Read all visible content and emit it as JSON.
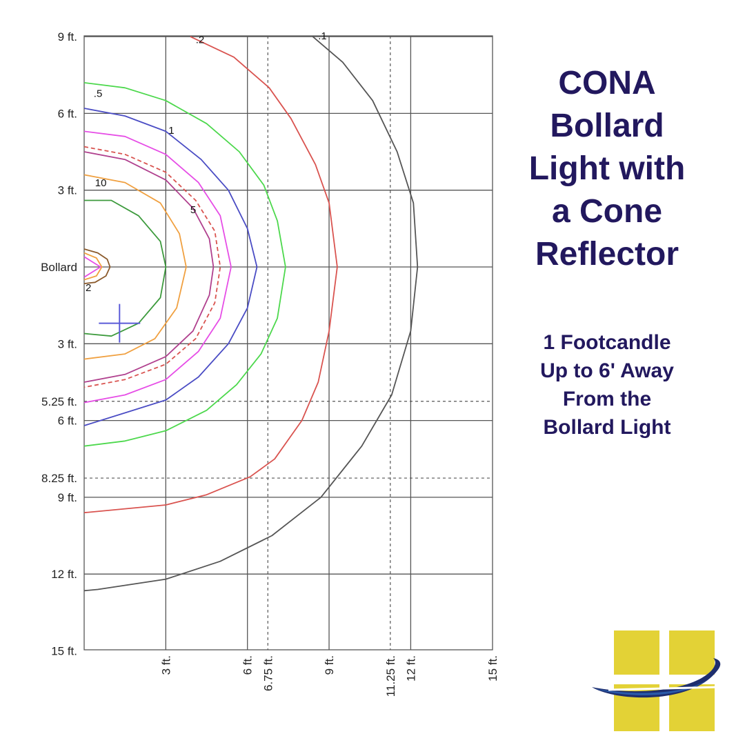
{
  "title_lines": [
    "CONA",
    "Bollard",
    "Light with",
    "a Cone",
    "Reflector"
  ],
  "subtitle_lines": [
    "1 Footcandle",
    "Up to 6' Away",
    "From the",
    "Bollard Light"
  ],
  "y_axis_labels": [
    {
      "text": "9 ft.",
      "ft": 9
    },
    {
      "text": "6 ft.",
      "ft": 6
    },
    {
      "text": "3 ft.",
      "ft": 3
    },
    {
      "text": "Bollard",
      "ft": 0
    },
    {
      "text": "3 ft.",
      "ft": -3
    },
    {
      "text": "5.25 ft.",
      "ft": -5.25
    },
    {
      "text": "6 ft.",
      "ft": -6
    },
    {
      "text": "8.25 ft.",
      "ft": -8.25
    },
    {
      "text": "9 ft.",
      "ft": -9
    },
    {
      "text": "12 ft.",
      "ft": -12
    },
    {
      "text": "15 ft.",
      "ft": -15
    }
  ],
  "x_axis_labels": [
    {
      "text": "3 ft.",
      "ft": 3
    },
    {
      "text": "6 ft.",
      "ft": 6
    },
    {
      "text": "6.75 ft.",
      "ft": 6.75
    },
    {
      "text": "9 ft.",
      "ft": 9
    },
    {
      "text": "11.25 ft.",
      "ft": 11.25
    },
    {
      "text": "12 ft.",
      "ft": 12
    },
    {
      "text": "15 ft.",
      "ft": 15
    }
  ],
  "dashed_lines": {
    "x_ft": [
      6.75,
      11.25
    ],
    "y_ft": [
      -5.25,
      -8.25
    ]
  },
  "contours": [
    {
      "label": ".1",
      "color": "#555555",
      "label_pos_ft": [
        8.6,
        8.9
      ],
      "points_ft": [
        [
          8.4,
          9
        ],
        [
          9.5,
          8
        ],
        [
          10.6,
          6.5
        ],
        [
          11.5,
          4.5
        ],
        [
          12.1,
          2.5
        ],
        [
          12.25,
          0
        ],
        [
          12,
          -2.5
        ],
        [
          11.3,
          -5
        ],
        [
          10.2,
          -7
        ],
        [
          8.7,
          -9
        ],
        [
          6.9,
          -10.5
        ],
        [
          5,
          -11.5
        ],
        [
          3,
          -12.2
        ],
        [
          0.5,
          -12.6
        ],
        [
          0,
          -12.65
        ]
      ]
    },
    {
      "label": ".2",
      "color": "#d9534f",
      "label_pos_ft": [
        4.1,
        8.75
      ],
      "points_ft": [
        [
          3.9,
          9
        ],
        [
          5.5,
          8.2
        ],
        [
          6.8,
          7
        ],
        [
          7.6,
          5.8
        ],
        [
          8.5,
          4
        ],
        [
          9,
          2.5
        ],
        [
          9.3,
          0
        ],
        [
          9,
          -2.5
        ],
        [
          8.6,
          -4.5
        ],
        [
          8,
          -6
        ],
        [
          7,
          -7.5
        ],
        [
          6.1,
          -8.2
        ],
        [
          4.5,
          -8.9
        ],
        [
          3,
          -9.3
        ],
        [
          0,
          -9.6
        ]
      ]
    },
    {
      "label": ".5",
      "color": "#4cd84c",
      "label_pos_ft": [
        0.35,
        6.65
      ],
      "points_ft": [
        [
          0,
          7.2
        ],
        [
          1.5,
          7
        ],
        [
          3,
          6.5
        ],
        [
          4.5,
          5.6
        ],
        [
          5.7,
          4.5
        ],
        [
          6.6,
          3.2
        ],
        [
          7.1,
          1.8
        ],
        [
          7.4,
          0
        ],
        [
          7.1,
          -2
        ],
        [
          6.5,
          -3.4
        ],
        [
          5.6,
          -4.6
        ],
        [
          4.5,
          -5.6
        ],
        [
          3,
          -6.4
        ],
        [
          1.5,
          -6.8
        ],
        [
          0,
          -7
        ]
      ]
    },
    {
      "label": "1",
      "color": "#4a4cc4",
      "label_pos_ft": [
        3.1,
        5.2
      ],
      "points_ft": [
        [
          0,
          6.2
        ],
        [
          1.5,
          5.9
        ],
        [
          3,
          5.3
        ],
        [
          4.3,
          4.2
        ],
        [
          5.3,
          3
        ],
        [
          6,
          1.5
        ],
        [
          6.35,
          0
        ],
        [
          6,
          -1.6
        ],
        [
          5.3,
          -3
        ],
        [
          4.2,
          -4.3
        ],
        [
          3,
          -5.2
        ],
        [
          1.5,
          -5.7
        ],
        [
          0,
          -6.2
        ]
      ]
    },
    {
      "label": "",
      "color": "#e64de6",
      "label_pos_ft": [
        0,
        0
      ],
      "points_ft": [
        [
          0,
          5.3
        ],
        [
          1.5,
          5.1
        ],
        [
          3,
          4.4
        ],
        [
          4.2,
          3.3
        ],
        [
          5,
          2
        ],
        [
          5.4,
          0
        ],
        [
          5,
          -2
        ],
        [
          4.2,
          -3.3
        ],
        [
          3,
          -4.4
        ],
        [
          1.5,
          -5
        ],
        [
          0,
          -5.3
        ]
      ]
    },
    {
      "label": "5",
      "color": "#b0408e",
      "label_pos_ft": [
        3.9,
        2.1
      ],
      "points_ft": [
        [
          0,
          4.5
        ],
        [
          1.5,
          4.2
        ],
        [
          3,
          3.4
        ],
        [
          4,
          2.3
        ],
        [
          4.6,
          1.1
        ],
        [
          4.75,
          0
        ],
        [
          4.6,
          -1.1
        ],
        [
          4,
          -2.5
        ],
        [
          3,
          -3.5
        ],
        [
          1.5,
          -4.2
        ],
        [
          0,
          -4.5
        ]
      ]
    },
    {
      "label": "",
      "color": "#d9534f",
      "dashed": true,
      "label_pos_ft": [
        0,
        0
      ],
      "points_ft": [
        [
          0,
          4.7
        ],
        [
          1.5,
          4.4
        ],
        [
          3,
          3.7
        ],
        [
          4.1,
          2.6
        ],
        [
          4.8,
          1.4
        ],
        [
          5,
          0
        ],
        [
          4.8,
          -1.4
        ],
        [
          4.1,
          -2.8
        ],
        [
          3,
          -3.8
        ],
        [
          1.5,
          -4.4
        ],
        [
          0,
          -4.7
        ]
      ]
    },
    {
      "label": "10",
      "color": "#f0a040",
      "label_pos_ft": [
        0.4,
        3.15
      ],
      "points_ft": [
        [
          0,
          3.6
        ],
        [
          1.5,
          3.3
        ],
        [
          2.8,
          2.5
        ],
        [
          3.5,
          1.3
        ],
        [
          3.75,
          0
        ],
        [
          3.4,
          -1.6
        ],
        [
          2.6,
          -2.8
        ],
        [
          1.5,
          -3.4
        ],
        [
          0,
          -3.6
        ]
      ]
    },
    {
      "label": "",
      "color": "#3c9a3c",
      "label_pos_ft": [
        0,
        0
      ],
      "points_ft": [
        [
          0,
          2.6
        ],
        [
          1,
          2.6
        ],
        [
          2,
          2
        ],
        [
          2.8,
          1
        ],
        [
          3,
          0
        ],
        [
          2.8,
          -1.2
        ],
        [
          2,
          -2.2
        ],
        [
          1,
          -2.7
        ],
        [
          0,
          -2.6
        ]
      ]
    },
    {
      "label": "",
      "color": "#8b5a2b",
      "label_pos_ft": [
        0,
        0
      ],
      "points_ft": [
        [
          0,
          0.7
        ],
        [
          0.5,
          0.55
        ],
        [
          0.85,
          0.3
        ],
        [
          0.95,
          0
        ],
        [
          0.8,
          -0.35
        ],
        [
          0.4,
          -0.6
        ],
        [
          0,
          -0.65
        ]
      ]
    },
    {
      "label": "",
      "color": "#f0a040",
      "label_pos_ft": [
        0,
        0
      ],
      "points_ft": [
        [
          0,
          0.55
        ],
        [
          0.45,
          0.35
        ],
        [
          0.65,
          0
        ],
        [
          0.45,
          -0.35
        ],
        [
          0,
          -0.5
        ]
      ]
    },
    {
      "label": "2",
      "color": "#e64de6",
      "label_pos_ft": [
        0.05,
        -0.95
      ],
      "points_ft": [
        [
          0,
          0.4
        ],
        [
          0.6,
          0
        ],
        [
          0,
          -0.4
        ]
      ]
    }
  ],
  "bollard_marker": {
    "x_ft": 1.3,
    "y_ft": -2.2
  },
  "colors": {
    "title": "#22185e",
    "grid": "#555555",
    "logo_yellow": "#e3d236",
    "logo_blue": "#2a5aa8",
    "logo_navy": "#1e2e6e"
  }
}
